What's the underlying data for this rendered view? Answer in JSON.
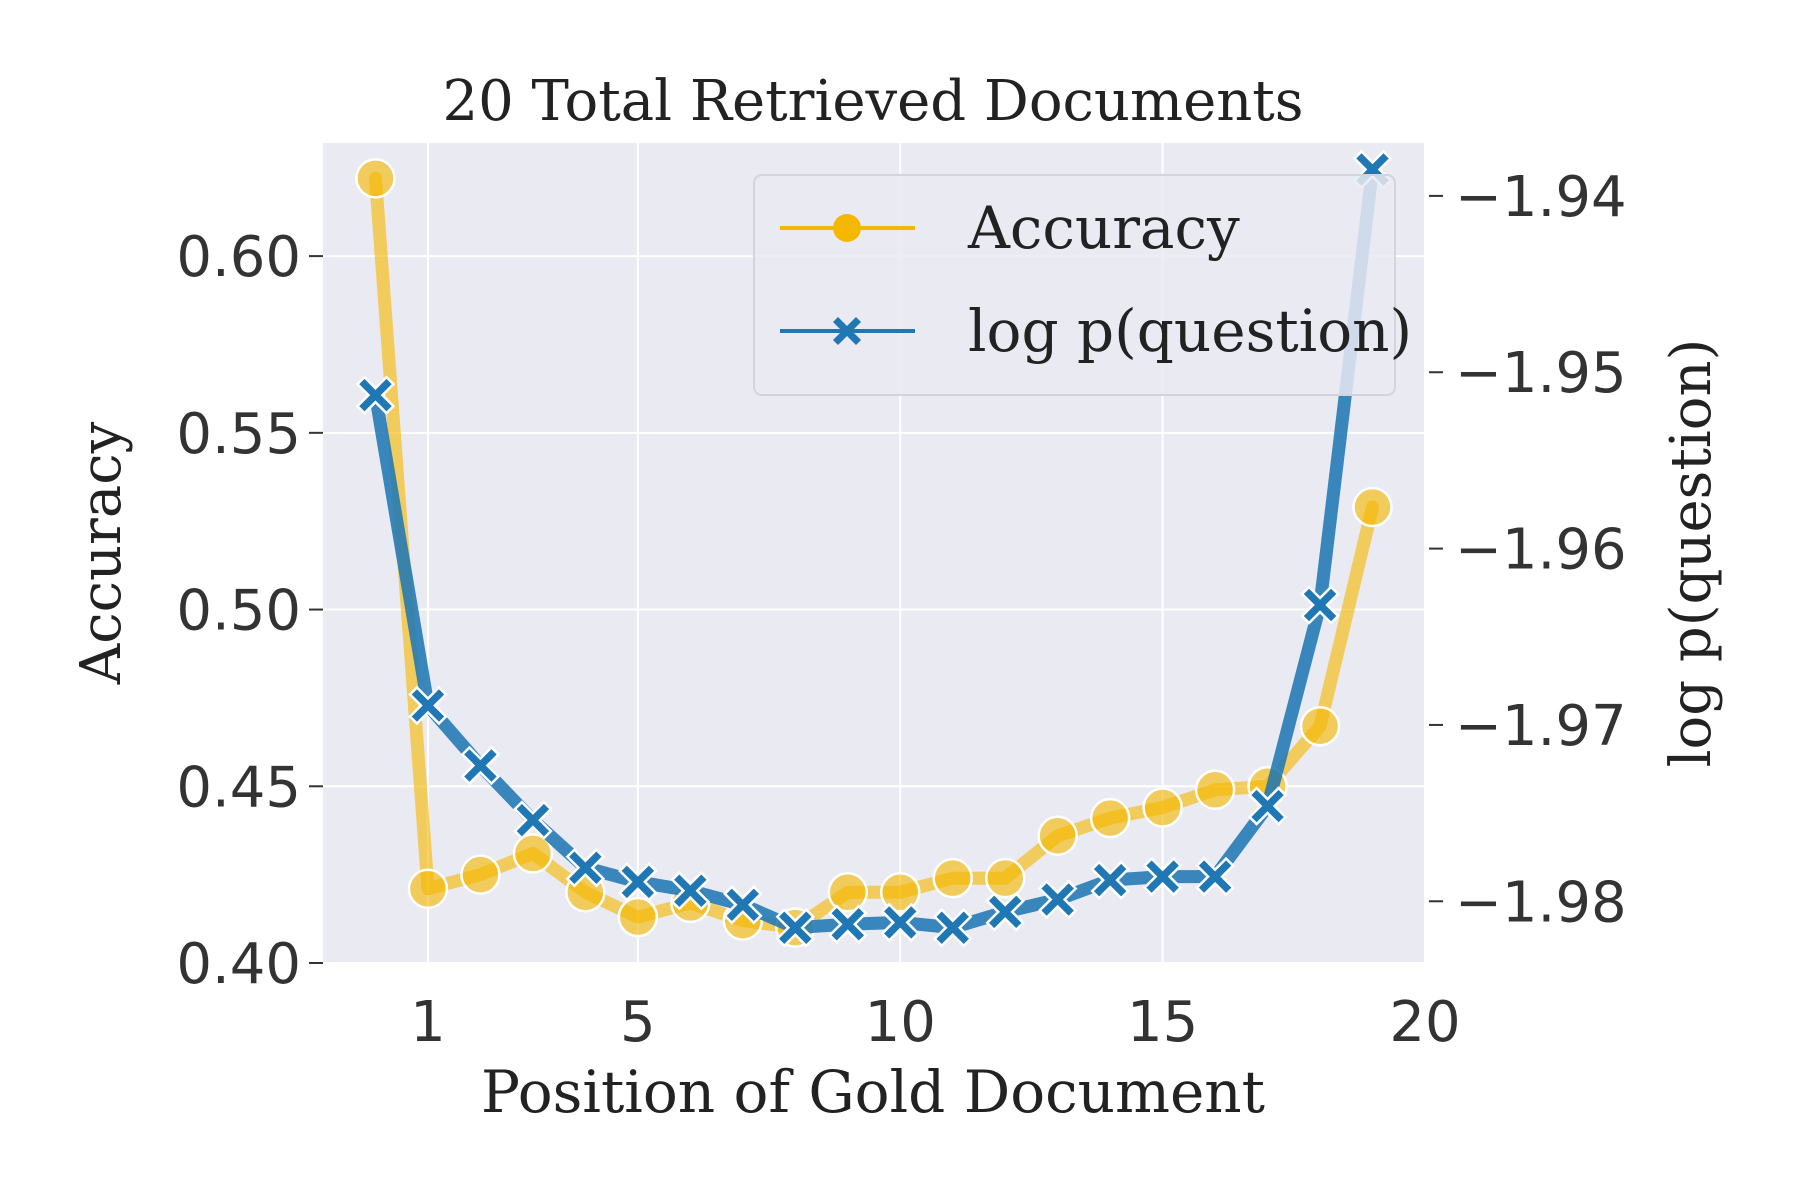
{
  "chart_data": {
    "type": "line",
    "title": "20 Total Retrieved Documents",
    "xlabel": "Position of Gold Document",
    "ylabel": "Accuracy",
    "ylabel_right": "log p(question)",
    "xlim": [
      -1,
      20
    ],
    "ylim": [
      0.4,
      0.632
    ],
    "ylim_right": [
      -1.9835,
      -1.937
    ],
    "xticks": [
      1,
      5,
      10,
      15,
      20
    ],
    "yticks": [
      0.4,
      0.45,
      0.5,
      0.55,
      0.6
    ],
    "yticks_right": [
      -1.98,
      -1.97,
      -1.96,
      -1.95,
      -1.94
    ],
    "xtick_labels": [
      "1",
      "5",
      "10",
      "15",
      "20"
    ],
    "ytick_labels": [
      "0.40",
      "0.45",
      "0.50",
      "0.55",
      "0.60"
    ],
    "ytick_labels_right": [
      "−1.98",
      "−1.97",
      "−1.96",
      "−1.95",
      "−1.94"
    ],
    "grid": true,
    "legend_position": "top-right",
    "x": [
      0,
      1,
      2,
      3,
      4,
      5,
      6,
      7,
      8,
      9,
      10,
      11,
      12,
      13,
      14,
      15,
      16,
      17,
      18,
      19
    ],
    "series": [
      {
        "name": "Accuracy",
        "axis": "left",
        "marker": "circle",
        "color": "#F5B800",
        "values": [
          0.622,
          0.421,
          0.425,
          0.431,
          0.42,
          0.413,
          0.417,
          0.412,
          0.41,
          0.42,
          0.42,
          0.424,
          0.424,
          0.436,
          0.441,
          0.444,
          0.449,
          0.45,
          0.467,
          0.529
        ]
      },
      {
        "name": "log p(question)",
        "axis": "right",
        "marker": "x",
        "color": "#1F77B4",
        "values": [
          -1.9513,
          -1.9689,
          -1.9723,
          -1.9754,
          -1.9781,
          -1.9789,
          -1.9794,
          -1.9802,
          -1.9815,
          -1.9813,
          -1.9812,
          -1.9815,
          -1.9806,
          -1.9799,
          -1.9788,
          -1.9786,
          -1.9786,
          -1.9746,
          -1.9632,
          -1.9385
        ]
      }
    ]
  }
}
